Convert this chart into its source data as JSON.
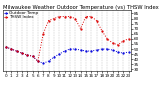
{
  "title": "Milwaukee Weather Outdoor Temperature (vs) THSW Index per Hour (Last 24 Hours)",
  "hours": [
    0,
    1,
    2,
    3,
    4,
    5,
    6,
    7,
    8,
    9,
    10,
    11,
    12,
    13,
    14,
    15,
    16,
    17,
    18,
    19,
    20,
    21,
    22,
    23
  ],
  "temp": [
    52,
    50,
    48,
    46,
    44,
    43,
    38,
    36,
    38,
    42,
    45,
    48,
    50,
    50,
    49,
    48,
    48,
    49,
    50,
    50,
    49,
    47,
    46,
    47
  ],
  "thsw": [
    52,
    50,
    48,
    46,
    44,
    43,
    38,
    65,
    78,
    80,
    82,
    82,
    82,
    80,
    70,
    82,
    82,
    78,
    68,
    60,
    56,
    54,
    58,
    60
  ],
  "temp_color": "#0000dd",
  "thsw_color": "#dd0000",
  "grid_color": "#888888",
  "background_color": "#ffffff",
  "ylim": [
    28,
    88
  ],
  "ytick_right": [
    30,
    35,
    40,
    45,
    50,
    55,
    60,
    65,
    70,
    75,
    80,
    85
  ],
  "ytick_labels_right": [
    "30",
    "35",
    "40",
    "45",
    "50",
    "55",
    "60",
    "65",
    "70",
    "75",
    "80",
    "85"
  ],
  "legend_temp": "Outdoor Temp",
  "legend_thsw": "THSW Index",
  "title_fontsize": 3.8,
  "tick_fontsize": 3.0,
  "legend_fontsize": 3.0,
  "line_width": 0.7,
  "marker_size": 1.2,
  "grid_linewidth": 0.3
}
